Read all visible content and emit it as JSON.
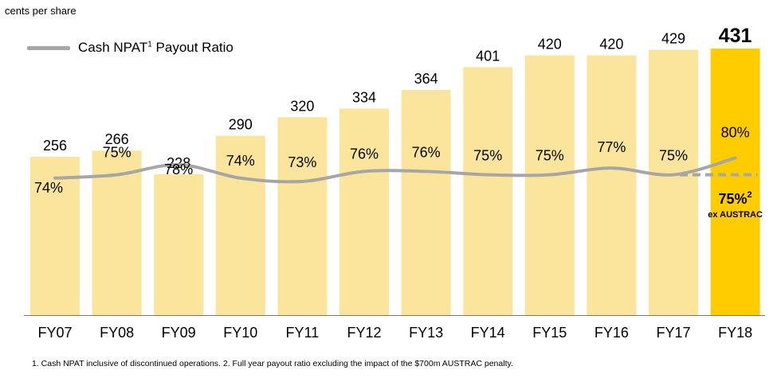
{
  "unit_label": "cents per share",
  "legend": {
    "label": "Cash NPAT",
    "sup": "1",
    "suffix": " Payout Ratio"
  },
  "footnote": "1. Cash NPAT inclusive of discontinued operations.  2. Full year payout ratio excluding the impact of the $700m AUSTRAC penalty.",
  "colors": {
    "bar": "#fbe59c",
    "bar_highlight": "#ffcc00",
    "line": "#a6a6a6"
  },
  "chart_data": {
    "type": "bar",
    "categories": [
      "FY07",
      "FY08",
      "FY09",
      "FY10",
      "FY11",
      "FY12",
      "FY13",
      "FY14",
      "FY15",
      "FY16",
      "FY17",
      "FY18"
    ],
    "values": [
      256,
      266,
      228,
      290,
      320,
      334,
      364,
      401,
      420,
      420,
      429,
      431
    ],
    "ylim": [
      0,
      431
    ],
    "highlight": "FY18",
    "payout_ratio": {
      "name": "Cash NPAT Payout Ratio",
      "labels": [
        "74%",
        "75%",
        "78%",
        "74%",
        "73%",
        "76%",
        "76%",
        "75%",
        "75%",
        "77%",
        "75%",
        "80%"
      ]
    },
    "annotation": {
      "value": "75%",
      "sup": "2",
      "text": "ex AUSTRAC"
    }
  }
}
